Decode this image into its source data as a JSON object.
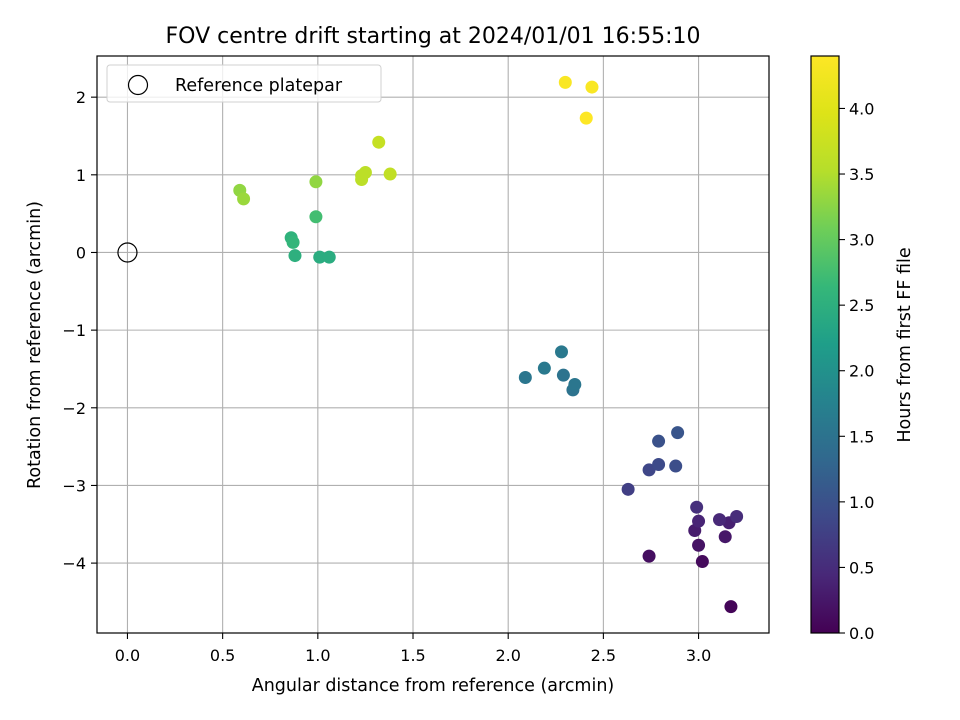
{
  "chart_data": {
    "type": "scatter",
    "title": "FOV centre drift starting at 2024/01/01 16:55:10",
    "xlabel": "Angular distance from reference (arcmin)",
    "ylabel": "Rotation from reference (arcmin)",
    "xlim": [
      -0.16,
      3.37
    ],
    "ylim": [
      -4.9,
      2.53
    ],
    "xticks": [
      0.0,
      0.5,
      1.0,
      1.5,
      2.0,
      2.5,
      3.0
    ],
    "xtick_labels": [
      "0.0",
      "0.5",
      "1.0",
      "1.5",
      "2.0",
      "2.5",
      "3.0"
    ],
    "yticks": [
      2,
      1,
      0,
      -1,
      -2,
      -3,
      -4
    ],
    "ytick_labels": [
      "2",
      "1",
      "0",
      "−1",
      "−2",
      "−3",
      "−4"
    ],
    "grid": true,
    "legend": {
      "location": "upper-left",
      "entries": [
        "Reference platepar"
      ]
    },
    "reference_point": {
      "x": 0.0,
      "y": 0.0,
      "marker": "open-circle"
    },
    "colorbar": {
      "label": "Hours from first FF file",
      "colormap": "viridis",
      "range": [
        0.0,
        4.4
      ],
      "ticks": [
        0.0,
        0.5,
        1.0,
        1.5,
        2.0,
        2.5,
        3.0,
        3.5,
        4.0
      ],
      "tick_labels": [
        "0.0",
        "0.5",
        "1.0",
        "1.5",
        "2.0",
        "2.5",
        "3.0",
        "3.5",
        "4.0"
      ]
    },
    "points": [
      {
        "x": 3.17,
        "y": -4.56,
        "c": 0.05
      },
      {
        "x": 3.02,
        "y": -3.98,
        "c": 0.1
      },
      {
        "x": 2.74,
        "y": -3.91,
        "c": 0.15
      },
      {
        "x": 3.0,
        "y": -3.77,
        "c": 0.2
      },
      {
        "x": 3.14,
        "y": -3.66,
        "c": 0.25
      },
      {
        "x": 2.98,
        "y": -3.58,
        "c": 0.3
      },
      {
        "x": 3.16,
        "y": -3.48,
        "c": 0.35
      },
      {
        "x": 3.0,
        "y": -3.46,
        "c": 0.4
      },
      {
        "x": 3.11,
        "y": -3.44,
        "c": 0.45
      },
      {
        "x": 3.2,
        "y": -3.4,
        "c": 0.5
      },
      {
        "x": 2.99,
        "y": -3.28,
        "c": 0.55
      },
      {
        "x": 2.63,
        "y": -3.05,
        "c": 0.75
      },
      {
        "x": 2.74,
        "y": -2.8,
        "c": 0.85
      },
      {
        "x": 2.79,
        "y": -2.73,
        "c": 0.9
      },
      {
        "x": 2.88,
        "y": -2.75,
        "c": 0.95
      },
      {
        "x": 2.79,
        "y": -2.43,
        "c": 1.0
      },
      {
        "x": 2.89,
        "y": -2.32,
        "c": 1.05
      },
      {
        "x": 2.34,
        "y": -1.77,
        "c": 1.5
      },
      {
        "x": 2.35,
        "y": -1.7,
        "c": 1.55
      },
      {
        "x": 2.29,
        "y": -1.58,
        "c": 1.5
      },
      {
        "x": 2.09,
        "y": -1.61,
        "c": 1.55
      },
      {
        "x": 2.19,
        "y": -1.49,
        "c": 1.6
      },
      {
        "x": 2.28,
        "y": -1.28,
        "c": 1.6
      },
      {
        "x": 0.86,
        "y": 0.19,
        "c": 2.55
      },
      {
        "x": 0.87,
        "y": 0.13,
        "c": 2.6
      },
      {
        "x": 0.88,
        "y": -0.04,
        "c": 2.5
      },
      {
        "x": 1.01,
        "y": -0.06,
        "c": 2.45
      },
      {
        "x": 1.06,
        "y": -0.06,
        "c": 2.45
      },
      {
        "x": 0.99,
        "y": 0.46,
        "c": 2.75
      },
      {
        "x": 0.99,
        "y": 0.91,
        "c": 3.3
      },
      {
        "x": 0.59,
        "y": 0.8,
        "c": 3.3
      },
      {
        "x": 0.61,
        "y": 0.69,
        "c": 3.35
      },
      {
        "x": 1.23,
        "y": 0.99,
        "c": 3.6
      },
      {
        "x": 1.25,
        "y": 1.03,
        "c": 3.6
      },
      {
        "x": 1.23,
        "y": 0.94,
        "c": 3.6
      },
      {
        "x": 1.38,
        "y": 1.01,
        "c": 3.65
      },
      {
        "x": 1.32,
        "y": 1.42,
        "c": 3.7
      },
      {
        "x": 2.3,
        "y": 2.19,
        "c": 4.35
      },
      {
        "x": 2.44,
        "y": 2.13,
        "c": 4.35
      },
      {
        "x": 2.41,
        "y": 1.73,
        "c": 4.4
      }
    ]
  }
}
